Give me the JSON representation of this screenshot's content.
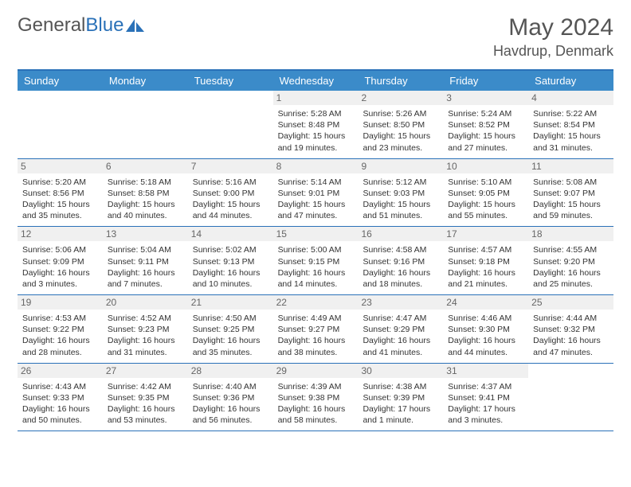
{
  "logo": {
    "text1": "General",
    "text2": "Blue"
  },
  "title": "May 2024",
  "location": "Havdrup, Denmark",
  "daynames": [
    "Sunday",
    "Monday",
    "Tuesday",
    "Wednesday",
    "Thursday",
    "Friday",
    "Saturday"
  ],
  "colors": {
    "header_bg": "#3b8bc9",
    "border": "#2a71b8",
    "daynum_bg": "#f0f0f0",
    "text": "#555"
  },
  "weeks": [
    [
      {
        "n": "",
        "sr": "",
        "ss": "",
        "dl": ""
      },
      {
        "n": "",
        "sr": "",
        "ss": "",
        "dl": ""
      },
      {
        "n": "",
        "sr": "",
        "ss": "",
        "dl": ""
      },
      {
        "n": "1",
        "sr": "Sunrise: 5:28 AM",
        "ss": "Sunset: 8:48 PM",
        "dl": "Daylight: 15 hours and 19 minutes."
      },
      {
        "n": "2",
        "sr": "Sunrise: 5:26 AM",
        "ss": "Sunset: 8:50 PM",
        "dl": "Daylight: 15 hours and 23 minutes."
      },
      {
        "n": "3",
        "sr": "Sunrise: 5:24 AM",
        "ss": "Sunset: 8:52 PM",
        "dl": "Daylight: 15 hours and 27 minutes."
      },
      {
        "n": "4",
        "sr": "Sunrise: 5:22 AM",
        "ss": "Sunset: 8:54 PM",
        "dl": "Daylight: 15 hours and 31 minutes."
      }
    ],
    [
      {
        "n": "5",
        "sr": "Sunrise: 5:20 AM",
        "ss": "Sunset: 8:56 PM",
        "dl": "Daylight: 15 hours and 35 minutes."
      },
      {
        "n": "6",
        "sr": "Sunrise: 5:18 AM",
        "ss": "Sunset: 8:58 PM",
        "dl": "Daylight: 15 hours and 40 minutes."
      },
      {
        "n": "7",
        "sr": "Sunrise: 5:16 AM",
        "ss": "Sunset: 9:00 PM",
        "dl": "Daylight: 15 hours and 44 minutes."
      },
      {
        "n": "8",
        "sr": "Sunrise: 5:14 AM",
        "ss": "Sunset: 9:01 PM",
        "dl": "Daylight: 15 hours and 47 minutes."
      },
      {
        "n": "9",
        "sr": "Sunrise: 5:12 AM",
        "ss": "Sunset: 9:03 PM",
        "dl": "Daylight: 15 hours and 51 minutes."
      },
      {
        "n": "10",
        "sr": "Sunrise: 5:10 AM",
        "ss": "Sunset: 9:05 PM",
        "dl": "Daylight: 15 hours and 55 minutes."
      },
      {
        "n": "11",
        "sr": "Sunrise: 5:08 AM",
        "ss": "Sunset: 9:07 PM",
        "dl": "Daylight: 15 hours and 59 minutes."
      }
    ],
    [
      {
        "n": "12",
        "sr": "Sunrise: 5:06 AM",
        "ss": "Sunset: 9:09 PM",
        "dl": "Daylight: 16 hours and 3 minutes."
      },
      {
        "n": "13",
        "sr": "Sunrise: 5:04 AM",
        "ss": "Sunset: 9:11 PM",
        "dl": "Daylight: 16 hours and 7 minutes."
      },
      {
        "n": "14",
        "sr": "Sunrise: 5:02 AM",
        "ss": "Sunset: 9:13 PM",
        "dl": "Daylight: 16 hours and 10 minutes."
      },
      {
        "n": "15",
        "sr": "Sunrise: 5:00 AM",
        "ss": "Sunset: 9:15 PM",
        "dl": "Daylight: 16 hours and 14 minutes."
      },
      {
        "n": "16",
        "sr": "Sunrise: 4:58 AM",
        "ss": "Sunset: 9:16 PM",
        "dl": "Daylight: 16 hours and 18 minutes."
      },
      {
        "n": "17",
        "sr": "Sunrise: 4:57 AM",
        "ss": "Sunset: 9:18 PM",
        "dl": "Daylight: 16 hours and 21 minutes."
      },
      {
        "n": "18",
        "sr": "Sunrise: 4:55 AM",
        "ss": "Sunset: 9:20 PM",
        "dl": "Daylight: 16 hours and 25 minutes."
      }
    ],
    [
      {
        "n": "19",
        "sr": "Sunrise: 4:53 AM",
        "ss": "Sunset: 9:22 PM",
        "dl": "Daylight: 16 hours and 28 minutes."
      },
      {
        "n": "20",
        "sr": "Sunrise: 4:52 AM",
        "ss": "Sunset: 9:23 PM",
        "dl": "Daylight: 16 hours and 31 minutes."
      },
      {
        "n": "21",
        "sr": "Sunrise: 4:50 AM",
        "ss": "Sunset: 9:25 PM",
        "dl": "Daylight: 16 hours and 35 minutes."
      },
      {
        "n": "22",
        "sr": "Sunrise: 4:49 AM",
        "ss": "Sunset: 9:27 PM",
        "dl": "Daylight: 16 hours and 38 minutes."
      },
      {
        "n": "23",
        "sr": "Sunrise: 4:47 AM",
        "ss": "Sunset: 9:29 PM",
        "dl": "Daylight: 16 hours and 41 minutes."
      },
      {
        "n": "24",
        "sr": "Sunrise: 4:46 AM",
        "ss": "Sunset: 9:30 PM",
        "dl": "Daylight: 16 hours and 44 minutes."
      },
      {
        "n": "25",
        "sr": "Sunrise: 4:44 AM",
        "ss": "Sunset: 9:32 PM",
        "dl": "Daylight: 16 hours and 47 minutes."
      }
    ],
    [
      {
        "n": "26",
        "sr": "Sunrise: 4:43 AM",
        "ss": "Sunset: 9:33 PM",
        "dl": "Daylight: 16 hours and 50 minutes."
      },
      {
        "n": "27",
        "sr": "Sunrise: 4:42 AM",
        "ss": "Sunset: 9:35 PM",
        "dl": "Daylight: 16 hours and 53 minutes."
      },
      {
        "n": "28",
        "sr": "Sunrise: 4:40 AM",
        "ss": "Sunset: 9:36 PM",
        "dl": "Daylight: 16 hours and 56 minutes."
      },
      {
        "n": "29",
        "sr": "Sunrise: 4:39 AM",
        "ss": "Sunset: 9:38 PM",
        "dl": "Daylight: 16 hours and 58 minutes."
      },
      {
        "n": "30",
        "sr": "Sunrise: 4:38 AM",
        "ss": "Sunset: 9:39 PM",
        "dl": "Daylight: 17 hours and 1 minute."
      },
      {
        "n": "31",
        "sr": "Sunrise: 4:37 AM",
        "ss": "Sunset: 9:41 PM",
        "dl": "Daylight: 17 hours and 3 minutes."
      },
      {
        "n": "",
        "sr": "",
        "ss": "",
        "dl": ""
      }
    ]
  ]
}
